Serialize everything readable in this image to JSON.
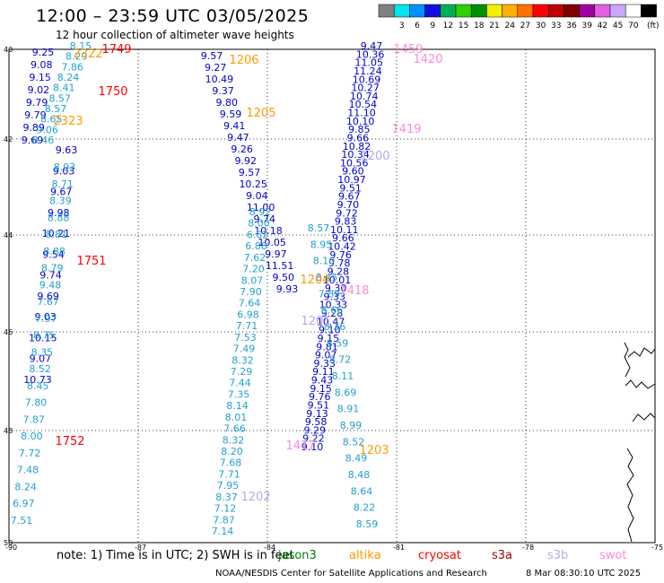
{
  "title": "12:00 – 23:59 UTC 03/05/2025",
  "subtitle": "12 hour collection of altimeter wave heights",
  "legend": {
    "ticks": [
      "3",
      "6",
      "9",
      "12",
      "15",
      "18",
      "21",
      "24",
      "27",
      "30",
      "33",
      "36",
      "39",
      "42",
      "45",
      "70"
    ],
    "unit": "(ft)",
    "colors": [
      "#808080",
      "#00e5e5",
      "#0090ff",
      "#1010e0",
      "#00b050",
      "#30d000",
      "#009000",
      "#f0f000",
      "#ffb000",
      "#ff7000",
      "#ff0000",
      "#c00000",
      "#800000",
      "#a000a0",
      "#e060e0",
      "#c8a8ff",
      "#ffffff",
      "#000000"
    ]
  },
  "axes": {
    "lat_ticks": [
      "40",
      "42",
      "44",
      "46",
      "48",
      "50"
    ],
    "lon_ticks": [
      "-90",
      "-87",
      "-84",
      "-81",
      "-78",
      "-75"
    ]
  },
  "note": "note:  1) Time is in UTC;  2) SWH is in feet",
  "satellites": [
    {
      "name": "jason3",
      "color": "#008000"
    },
    {
      "name": "altika",
      "color": "#ff9900"
    },
    {
      "name": "cryosat",
      "color": "#ff0000"
    },
    {
      "name": "s3a",
      "color": "#a00000"
    },
    {
      "name": "s3b",
      "color": "#b8a8f0"
    },
    {
      "name": "swot",
      "color": "#ff88dd"
    }
  ],
  "footer": "NOAA/NESDIS Center for Satellite Applications and Research",
  "footer_time": "8 Mar 08:30:10 UTC 2025",
  "tracks": [
    {
      "color": "#0000cc",
      "values": [
        "9.25",
        "9.08",
        "9.15",
        "9.02",
        "9.79",
        "9.79",
        "9.89",
        "9.69"
      ]
    },
    {
      "color": "#20a0d0",
      "values": [
        "8.15",
        "8.29",
        "7.86",
        "8.24",
        "8.41",
        "8.57",
        "8.57",
        "8.65",
        "9.06",
        "8.46"
      ]
    },
    {
      "color": "#0000cc",
      "values": [
        "9.63",
        "9.03",
        "9.67",
        "9.98",
        "10.21",
        "9.54",
        "9.74",
        "9.69",
        "9.03",
        "10.15",
        "9.07",
        "10.73"
      ]
    },
    {
      "color": "#20a0d0",
      "values": [
        "8.93",
        "8.71",
        "8.39",
        "8.88",
        "8.81",
        "8.88",
        "8.79",
        "9.48",
        "7.67",
        "7.97",
        "8.75",
        "8.35",
        "8.52",
        "8.45",
        "7.80",
        "7.87",
        "8.00",
        "7.72",
        "7.48",
        "8.24",
        "6.97",
        "7.51"
      ]
    },
    {
      "color": "#0000cc",
      "values": [
        "9.57",
        "9.27",
        "10.49",
        "9.37",
        "9.80",
        "9.59",
        "9.41",
        "9.47",
        "9.26",
        "9.92",
        "9.57",
        "10.25",
        "9.04",
        "11.00",
        "9.74",
        "10.18",
        "10.05",
        "9.97",
        "11.51",
        "9.50",
        "9.93"
      ]
    },
    {
      "color": "#20a0d0",
      "values": [
        "8.92",
        "8.00",
        "6.62",
        "6.88",
        "7.62",
        "7.20",
        "8.07",
        "7.90",
        "7.64",
        "6.98",
        "7.71",
        "7.53",
        "7.49",
        "8.32",
        "7.29",
        "7.44",
        "7.35",
        "8.14",
        "8.01",
        "7.66",
        "8.32",
        "8.20",
        "7.68",
        "7.71",
        "7.95",
        "8.37",
        "7.12",
        "7.87",
        "7.14"
      ]
    },
    {
      "color": "#0000cc",
      "values": [
        "9.47",
        "10.36",
        "11.05",
        "11.24",
        "10.69",
        "10.27",
        "10.74",
        "10.54",
        "11.10",
        "10.10",
        "9.85",
        "9.66",
        "10.82",
        "10.34",
        "10.56",
        "9.60",
        "10.97",
        "9.51",
        "9.67",
        "9.70",
        "9.72",
        "9.83",
        "10.11",
        "9.66",
        "10.42",
        "9.76",
        "9.78",
        "9.28",
        "10.01",
        "9.30",
        "9.33",
        "10.33",
        "9.28",
        "10.47",
        "9.10",
        "9.15",
        "9.81",
        "9.07",
        "9.33",
        "9.11",
        "9.43",
        "9.15",
        "9.76",
        "9.51",
        "9.13",
        "9.58",
        "9.29",
        "9.22",
        "9.10"
      ]
    },
    {
      "color": "#20a0d0",
      "values": [
        "8.57",
        "8.95",
        "8.10",
        "8.45",
        "7.89",
        "8.66",
        "8.36",
        "8.59",
        "8.72",
        "8.11",
        "8.69",
        "8.91",
        "8.99",
        "8.52",
        "8.49",
        "8.48",
        "8.64",
        "8.22",
        "8.59"
      ]
    }
  ],
  "passes": [
    {
      "id": "1749",
      "color": "#ff0000"
    },
    {
      "id": "2322",
      "color": "#ff9900"
    },
    {
      "id": "1750",
      "color": "#ff0000"
    },
    {
      "id": "2323",
      "color": "#ff9900"
    },
    {
      "id": "1751",
      "color": "#ff0000"
    },
    {
      "id": "1752",
      "color": "#ff0000"
    },
    {
      "id": "1206",
      "color": "#ff9900"
    },
    {
      "id": "1205",
      "color": "#ff9900"
    },
    {
      "id": "1204",
      "color": "#ff9900"
    },
    {
      "id": "1203",
      "color": "#ff9900"
    },
    {
      "id": "1202",
      "color": "#b8a8f0"
    },
    {
      "id": "1201",
      "color": "#b8a8f0"
    },
    {
      "id": "1200",
      "color": "#b8a8f0"
    },
    {
      "id": "1459",
      "color": "#ff88dd"
    },
    {
      "id": "1420",
      "color": "#ff88dd"
    },
    {
      "id": "1419",
      "color": "#ff88dd"
    },
    {
      "id": "1418",
      "color": "#ff88dd"
    },
    {
      "id": "1417",
      "color": "#ff88dd"
    }
  ]
}
